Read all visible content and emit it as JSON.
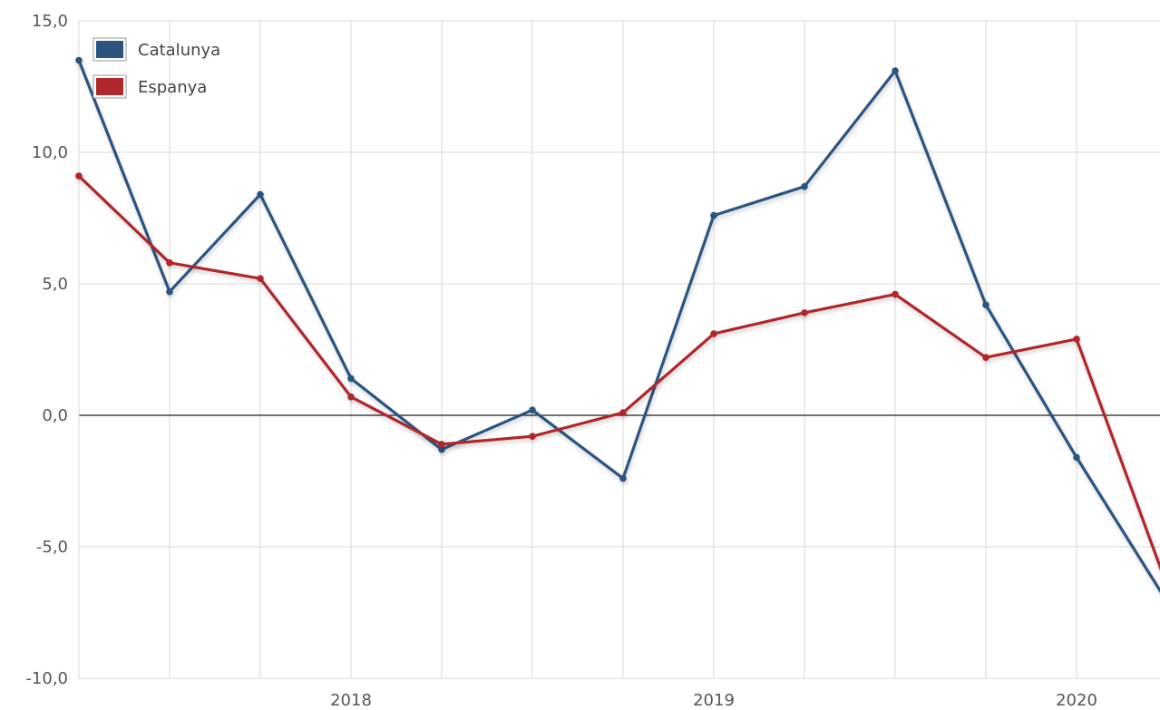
{
  "chart_data": {
    "type": "line",
    "title": "",
    "xlabel": "",
    "ylabel": "",
    "x": [
      "2017-T2",
      "2017-T3",
      "2017-T4",
      "2018-T1",
      "2018-T2",
      "2018-T3",
      "2018-T4",
      "2019-T1",
      "2019-T2",
      "2019-T3",
      "2019-T4",
      "2020-T1",
      "2020-T2"
    ],
    "x_tick_labels": [
      {
        "at": 3,
        "label": "2018"
      },
      {
        "at": 7,
        "label": "2019"
      },
      {
        "at": 11,
        "label": "2020"
      }
    ],
    "ylim": [
      -10,
      15
    ],
    "y_ticks": [
      15,
      10,
      5,
      0,
      -5,
      -10
    ],
    "y_tick_labels": [
      "15,0",
      "10,0",
      "5,0",
      "0,0",
      "-5,0",
      "-10,0"
    ],
    "grid": true,
    "legend_position": "top-left",
    "series": [
      {
        "name": "Catalunya",
        "color": "#2b5580",
        "values": [
          13.5,
          4.7,
          8.4,
          1.4,
          -1.3,
          0.2,
          -2.4,
          7.6,
          8.7,
          13.1,
          4.2,
          -1.6,
          -7.1
        ]
      },
      {
        "name": "Espanya",
        "color": "#b0272c",
        "values": [
          9.1,
          5.8,
          5.2,
          0.7,
          -1.1,
          -0.8,
          0.1,
          3.1,
          3.9,
          4.6,
          2.2,
          2.9,
          -6.5
        ]
      }
    ]
  }
}
